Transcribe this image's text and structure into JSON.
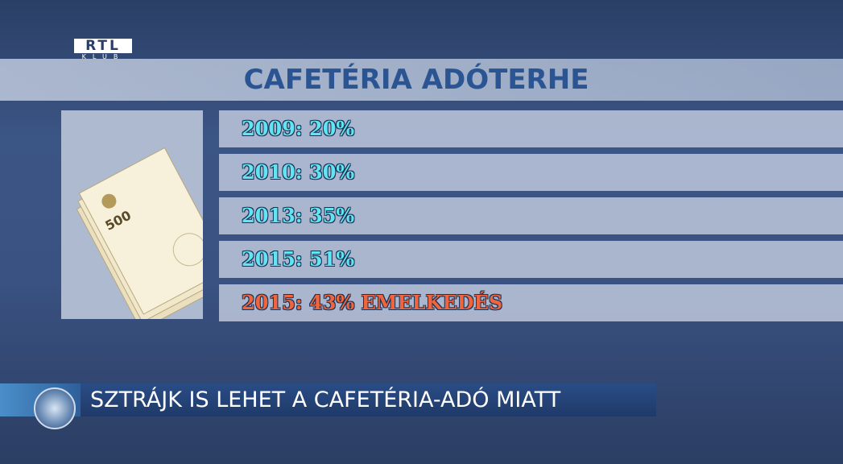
{
  "logo": {
    "name": "RTL",
    "sub": "KLUB"
  },
  "header": {
    "title": "CAFETÉRIA ADÓTERHE"
  },
  "image": {
    "label": "500"
  },
  "rows": [
    "2009: 20%",
    "2010: 30%",
    "2013: 35%",
    "2015: 51%",
    "2015: 43% EMELKEDÉS"
  ],
  "ticker": {
    "text": "SZTRÁJK IS LEHET A CAFETÉRIA-ADÓ MIATT"
  }
}
